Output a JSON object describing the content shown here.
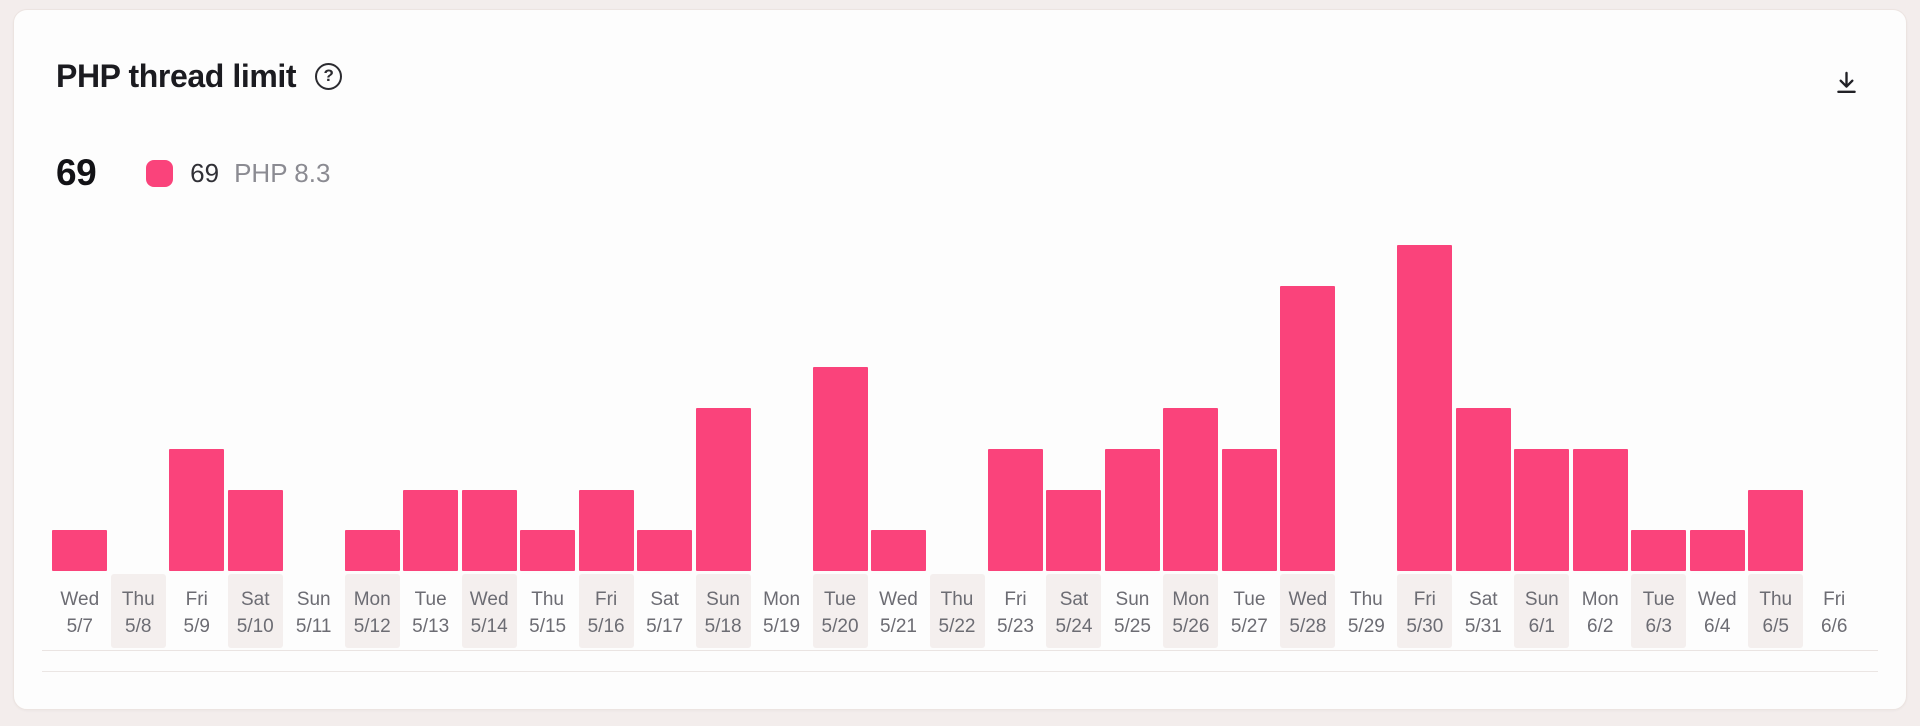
{
  "card": {
    "title": "PHP thread limit"
  },
  "summary": {
    "total": "69",
    "legend": {
      "value": "69",
      "label": "PHP 8.3",
      "color": "#FA437B"
    }
  },
  "chart_data": {
    "type": "bar",
    "title": "PHP thread limit",
    "categories_day": [
      "Wed",
      "Thu",
      "Fri",
      "Sat",
      "Sun",
      "Mon",
      "Tue",
      "Wed",
      "Thu",
      "Fri",
      "Sat",
      "Sun",
      "Mon",
      "Tue",
      "Wed",
      "Thu",
      "Fri",
      "Sat",
      "Sun",
      "Mon",
      "Tue",
      "Wed",
      "Thu",
      "Fri",
      "Sat",
      "Sun",
      "Mon",
      "Tue",
      "Wed",
      "Thu",
      "Fri"
    ],
    "categories_date": [
      "5/7",
      "5/8",
      "5/9",
      "5/10",
      "5/11",
      "5/12",
      "5/13",
      "5/14",
      "5/15",
      "5/16",
      "5/17",
      "5/18",
      "5/19",
      "5/20",
      "5/21",
      "5/22",
      "5/23",
      "5/24",
      "5/25",
      "5/26",
      "5/27",
      "5/28",
      "5/29",
      "5/30",
      "5/31",
      "6/1",
      "6/2",
      "6/3",
      "6/4",
      "6/5",
      "6/6"
    ],
    "series": [
      {
        "name": "PHP 8.3",
        "color": "#FA437B",
        "total": 69,
        "values": [
          1,
          0,
          3,
          2,
          0,
          1,
          2,
          2,
          1,
          2,
          1,
          4,
          0,
          5,
          1,
          0,
          3,
          2,
          3,
          4,
          3,
          7,
          0,
          8,
          4,
          3,
          3,
          1,
          1,
          2,
          0
        ]
      }
    ],
    "xlabel": "",
    "ylabel": "",
    "ylim": [
      0,
      8
    ],
    "grid": "none",
    "y_axis_shown": false,
    "legend_position": "top-left",
    "alt_column_stripes": true
  }
}
